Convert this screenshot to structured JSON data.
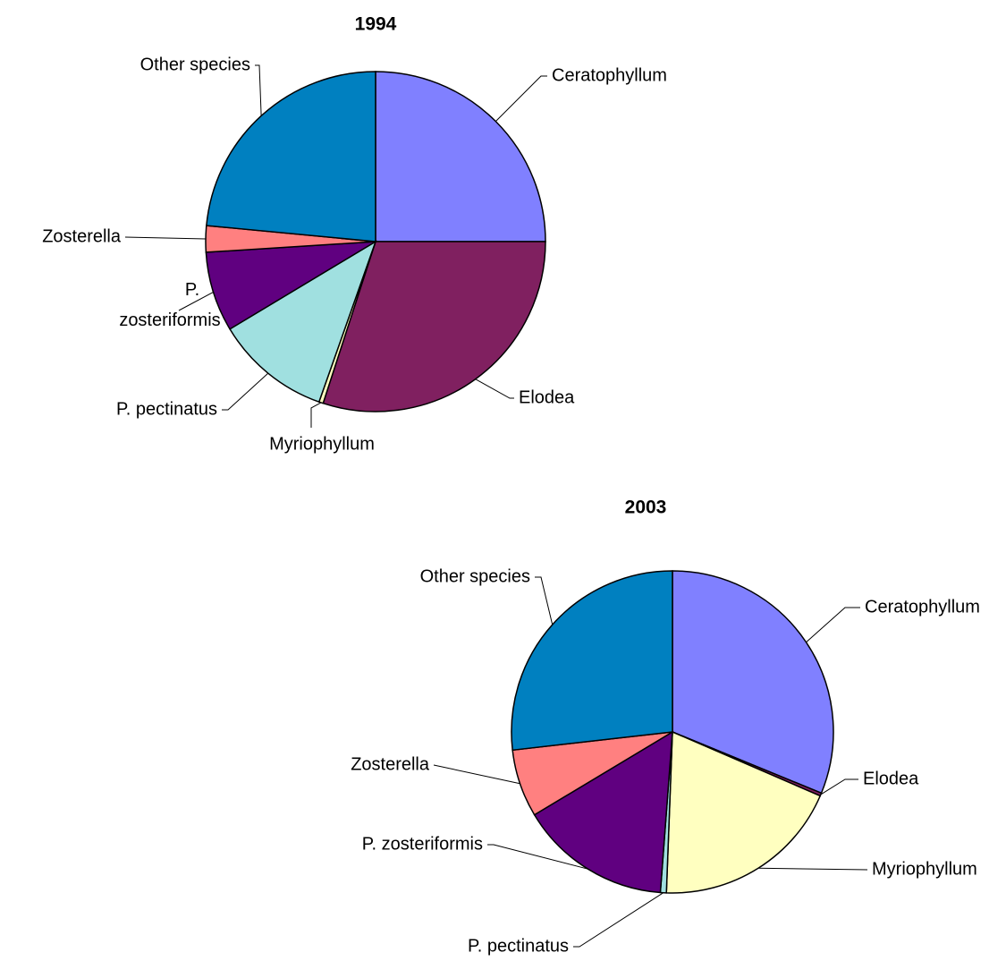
{
  "chart_data": [
    {
      "type": "pie",
      "title": "1994",
      "categories": [
        "Ceratophyllum",
        "Elodea",
        "Myriophyllum",
        "P. pectinatus",
        "P. zosteriformis",
        "Zosterella",
        "Other species"
      ],
      "values": [
        25,
        30,
        0.4,
        11,
        7.6,
        2.5,
        23.5
      ],
      "colors": [
        "#8080ff",
        "#802060",
        "#ffffc0",
        "#a0e0e0",
        "#600080",
        "#ff8080",
        "#0080c0"
      ]
    },
    {
      "type": "pie",
      "title": "2003",
      "categories": [
        "Ceratophyllum",
        "Elodea",
        "Myriophyllum",
        "P. pectinatus",
        "P. zosteriformis",
        "Zosterella",
        "Other species"
      ],
      "values": [
        31.2,
        0.3,
        19.1,
        0.6,
        15.2,
        6.8,
        26.8
      ],
      "colors": [
        "#8080ff",
        "#802060",
        "#ffffc0",
        "#a0e0e0",
        "#600080",
        "#ff8080",
        "#0080c0"
      ]
    }
  ]
}
